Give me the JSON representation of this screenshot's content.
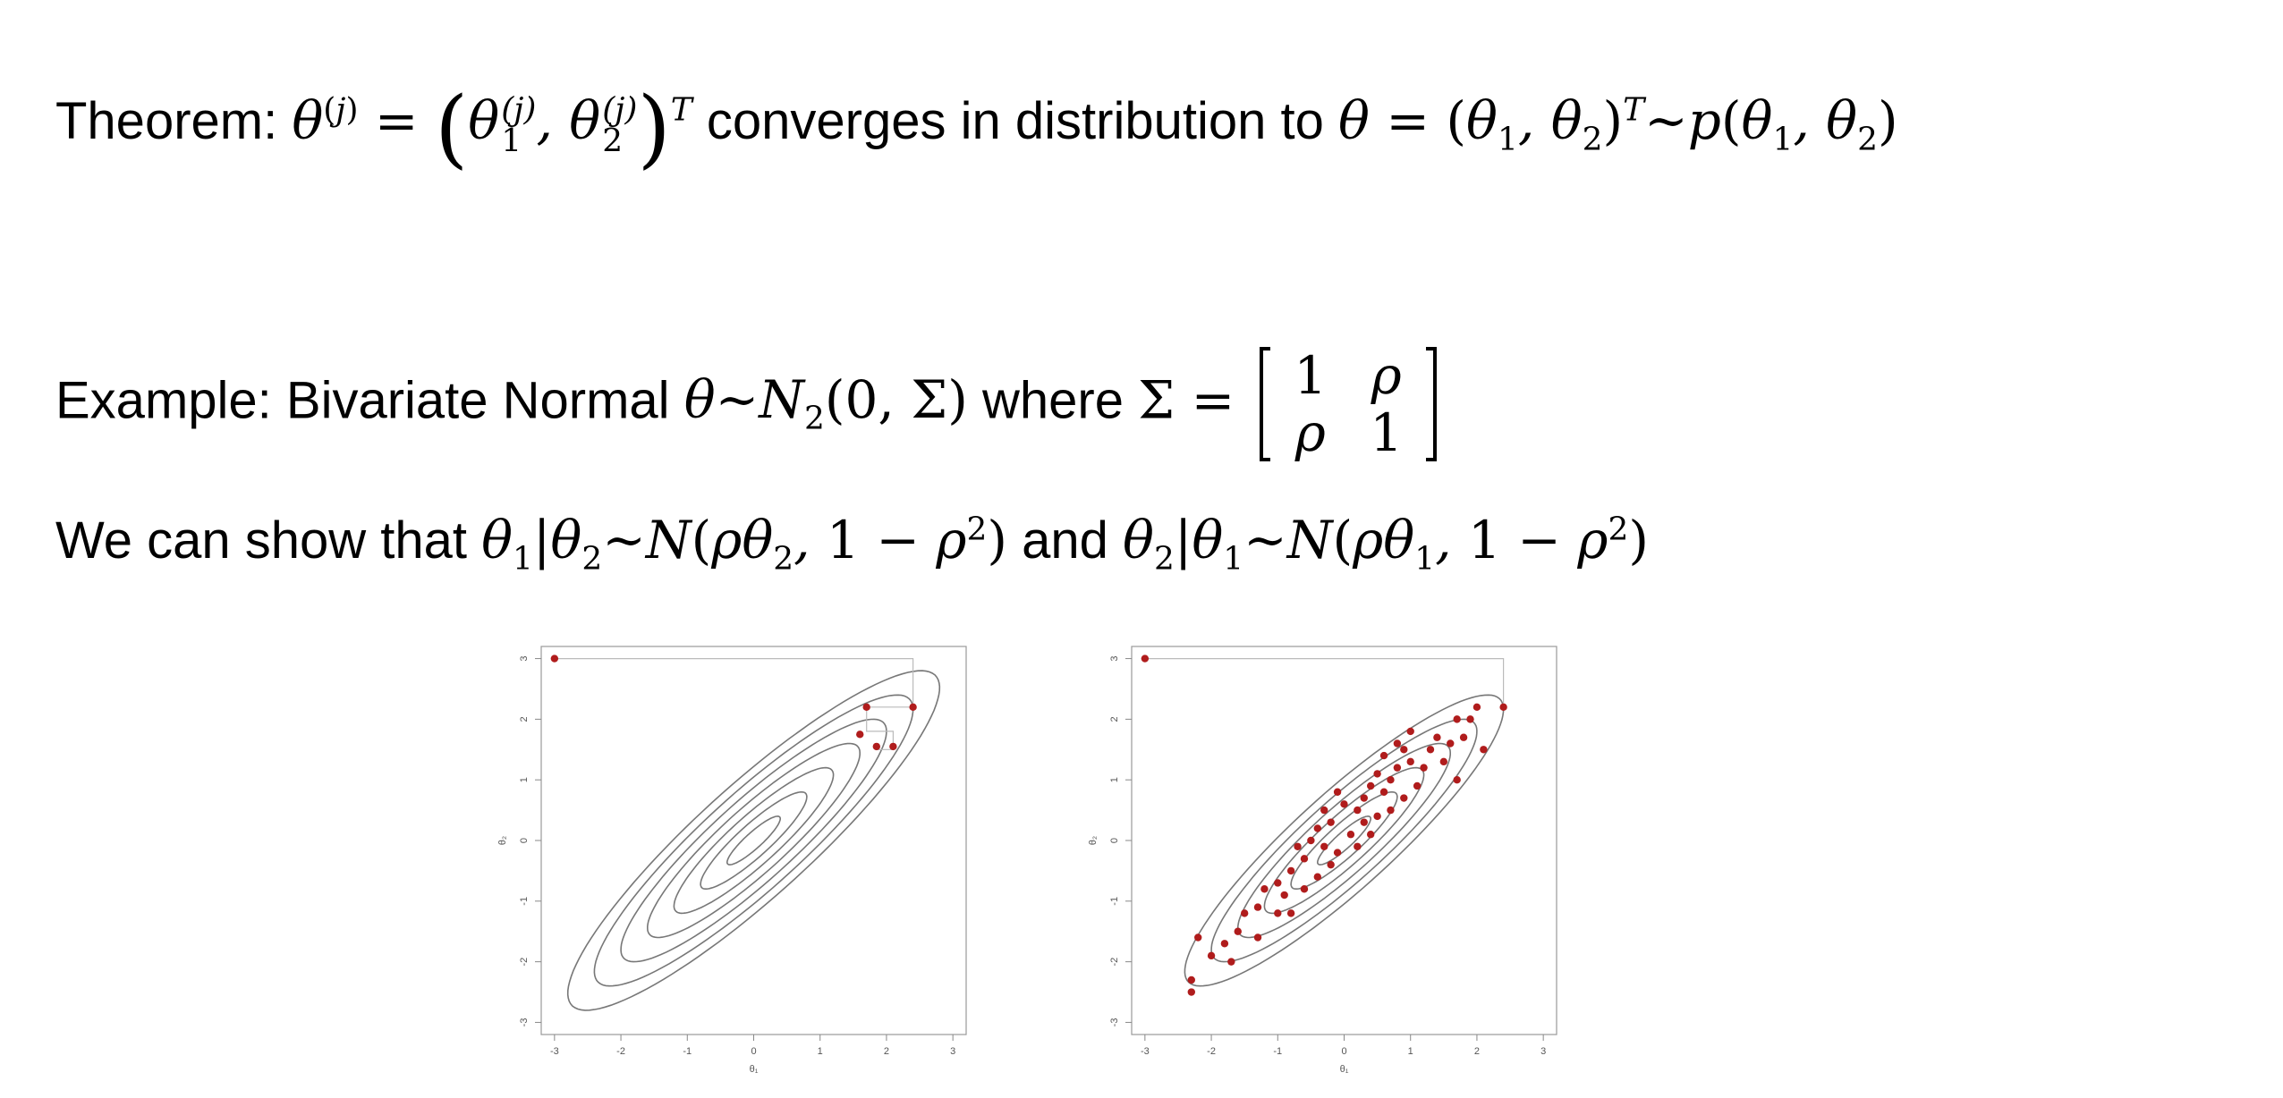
{
  "text": {
    "theorem_label": "Theorem:",
    "theorem_mid": "converges in distribution to",
    "example_label": "Example: Bivariate Normal",
    "example_where": "where",
    "show_label": "We can show that",
    "show_and": "and"
  },
  "matrix": {
    "r1c1": "1",
    "r1c2": "ρ",
    "r2c1": "ρ",
    "r2c2": "1"
  },
  "chart_data": [
    {
      "type": "scatter",
      "title": "",
      "xlabel": "θ₁",
      "ylabel": "θ₂",
      "xlim": [
        -3.2,
        3.2
      ],
      "ylim": [
        -3.2,
        3.2
      ],
      "xticks": [
        "-3",
        "-2",
        "-1",
        "0",
        "1",
        "2",
        "3"
      ],
      "yticks": [
        "-3",
        "-2",
        "-1",
        "0",
        "1",
        "2",
        "3"
      ],
      "contour_rho": 0.9,
      "contour_levels": [
        0.4,
        0.8,
        1.2,
        1.6,
        2.0,
        2.4,
        2.8
      ],
      "path": [
        [
          -3,
          3
        ],
        [
          2.4,
          3
        ],
        [
          2.4,
          2.2
        ],
        [
          1.7,
          2.2
        ],
        [
          1.7,
          1.8
        ],
        [
          2.1,
          1.8
        ],
        [
          2.1,
          1.5
        ],
        [
          1.85,
          1.5
        ]
      ],
      "points": [
        [
          -3,
          3
        ],
        [
          2.4,
          2.2
        ],
        [
          1.7,
          2.2
        ],
        [
          1.6,
          1.75
        ],
        [
          1.85,
          1.55
        ],
        [
          2.1,
          1.55
        ]
      ],
      "point_color": "#b01c1c",
      "grid": false
    },
    {
      "type": "scatter",
      "title": "",
      "xlabel": "θ₁",
      "ylabel": "θ₂",
      "xlim": [
        -3.2,
        3.2
      ],
      "ylim": [
        -3.2,
        3.2
      ],
      "xticks": [
        "-3",
        "-2",
        "-1",
        "0",
        "1",
        "2",
        "3"
      ],
      "yticks": [
        "-3",
        "-2",
        "-1",
        "0",
        "1",
        "2",
        "3"
      ],
      "contour_rho": 0.9,
      "contour_levels": [
        0.4,
        0.8,
        1.2,
        1.6,
        2.0,
        2.4
      ],
      "path": [
        [
          -3,
          3
        ],
        [
          2.4,
          3
        ],
        [
          2.4,
          2.2
        ]
      ],
      "points": [
        [
          -3,
          3
        ],
        [
          2.4,
          2.2
        ],
        [
          2.0,
          2.2
        ],
        [
          1.9,
          2.0
        ],
        [
          1.7,
          2.0
        ],
        [
          1.8,
          1.7
        ],
        [
          2.1,
          1.5
        ],
        [
          1.6,
          1.6
        ],
        [
          1.4,
          1.7
        ],
        [
          1.3,
          1.5
        ],
        [
          1.5,
          1.3
        ],
        [
          1.7,
          1.0
        ],
        [
          1.2,
          1.2
        ],
        [
          1.0,
          1.3
        ],
        [
          0.9,
          1.5
        ],
        [
          0.8,
          1.2
        ],
        [
          1.1,
          0.9
        ],
        [
          0.7,
          1.0
        ],
        [
          0.5,
          1.1
        ],
        [
          0.9,
          0.7
        ],
        [
          0.6,
          0.8
        ],
        [
          0.4,
          0.9
        ],
        [
          0.3,
          0.7
        ],
        [
          0.7,
          0.5
        ],
        [
          0.2,
          0.5
        ],
        [
          0.5,
          0.4
        ],
        [
          0.0,
          0.6
        ],
        [
          -0.1,
          0.8
        ],
        [
          0.3,
          0.3
        ],
        [
          -0.2,
          0.3
        ],
        [
          0.1,
          0.1
        ],
        [
          -0.3,
          0.5
        ],
        [
          -0.4,
          0.2
        ],
        [
          0.2,
          -0.1
        ],
        [
          -0.1,
          -0.2
        ],
        [
          -0.5,
          0.0
        ],
        [
          -0.2,
          -0.4
        ],
        [
          -0.6,
          -0.3
        ],
        [
          -0.7,
          -0.1
        ],
        [
          -0.4,
          -0.6
        ],
        [
          -0.8,
          -0.5
        ],
        [
          -1.0,
          -0.7
        ],
        [
          -0.6,
          -0.8
        ],
        [
          -0.9,
          -0.9
        ],
        [
          -1.2,
          -0.8
        ],
        [
          -1.3,
          -1.1
        ],
        [
          -1.0,
          -1.2
        ],
        [
          -1.5,
          -1.2
        ],
        [
          -1.6,
          -1.5
        ],
        [
          -1.3,
          -1.6
        ],
        [
          -1.8,
          -1.7
        ],
        [
          -2.0,
          -1.9
        ],
        [
          -1.7,
          -2.0
        ],
        [
          -2.2,
          -1.6
        ],
        [
          -2.3,
          -2.3
        ],
        [
          -2.3,
          -2.5
        ],
        [
          0.8,
          1.6
        ],
        [
          1.0,
          1.8
        ],
        [
          0.4,
          0.1
        ],
        [
          -0.3,
          -0.1
        ],
        [
          0.6,
          1.4
        ],
        [
          -0.8,
          -1.2
        ]
      ],
      "point_color": "#b01c1c",
      "grid": false
    }
  ]
}
